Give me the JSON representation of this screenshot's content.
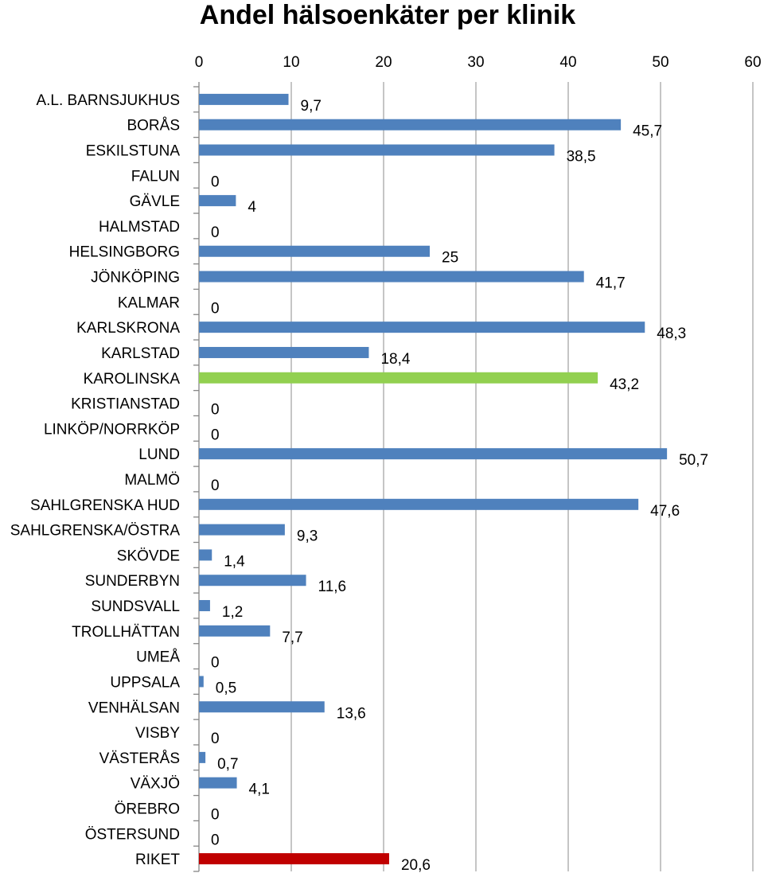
{
  "chart_data": {
    "type": "bar",
    "orientation": "horizontal",
    "title": "Andel hälsoenkäter per klinik",
    "xlim": [
      0,
      60
    ],
    "xticks": [
      0,
      10,
      20,
      30,
      40,
      50,
      60
    ],
    "x_axis_position": "top",
    "grid": true,
    "categories": [
      "A.L. BARNSJUKHUS",
      "BORÅS",
      "ESKILSTUNA",
      "FALUN",
      "GÄVLE",
      "HALMSTAD",
      "HELSINGBORG",
      "JÖNKÖPING",
      "KALMAR",
      "KARLSKRONA",
      "KARLSTAD",
      "KAROLINSKA",
      "KRISTIANSTAD",
      "LINKÖP/NORRKÖP",
      "LUND",
      "MALMÖ",
      "SAHLGRENSKA HUD",
      "SAHLGRENSKA/ÖSTRA",
      "SKÖVDE",
      "SUNDERBYN",
      "SUNDSVALL",
      "TROLLHÄTTAN",
      "UMEÅ",
      "UPPSALA",
      "VENHÄLSAN",
      "VISBY",
      "VÄSTERÅS",
      "VÄXJÖ",
      "ÖREBRO",
      "ÖSTERSUND",
      "RIKET"
    ],
    "values": [
      9.7,
      45.7,
      38.5,
      0,
      4,
      0,
      25,
      41.7,
      0,
      48.3,
      18.4,
      43.2,
      0,
      0,
      50.7,
      0,
      47.6,
      9.3,
      1.4,
      11.6,
      1.2,
      7.7,
      0,
      0.5,
      13.6,
      0,
      0.7,
      4.1,
      0,
      0,
      20.6
    ],
    "value_labels": [
      "9,7",
      "45,7",
      "38,5",
      "0",
      "4",
      "0",
      "25",
      "41,7",
      "0",
      "48,3",
      "18,4",
      "43,2",
      "0",
      "0",
      "50,7",
      "0",
      "47,6",
      "9,3",
      "1,4",
      "11,6",
      "1,2",
      "7,7",
      "0",
      "0,5",
      "13,6",
      "0",
      "0,7",
      "4,1",
      "0",
      "0",
      "20,6"
    ],
    "colors": {
      "default": "#4f81bd",
      "KAROLINSKA": "#92d050",
      "RIKET": "#c00000",
      "grid": "#a6a6a6",
      "axis": "#868686"
    }
  }
}
